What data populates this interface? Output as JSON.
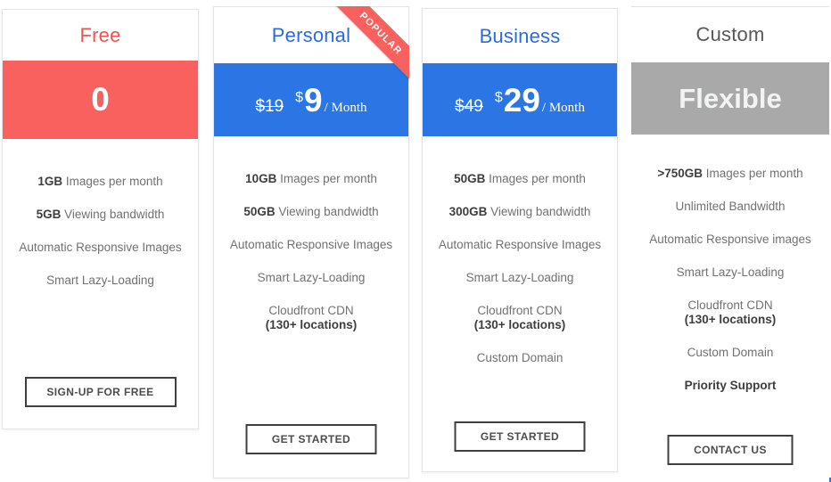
{
  "colors": {
    "red_band": "#f8615e",
    "blue_band": "#2b76e4",
    "gray_band": "#a9a9a9",
    "title_red": "#f4524f",
    "title_blue": "#2a6be2",
    "title_gray": "#58585a"
  },
  "bottom_strip_color": "#2b76e4",
  "plans": [
    {
      "key": "free",
      "title": "Free",
      "title_color": "#f4524f",
      "band_color": "#f8615e",
      "band": {
        "type": "text",
        "text": "0"
      },
      "features": [
        {
          "strong": "1GB",
          "text": "Images per month"
        },
        {
          "strong": "5GB",
          "text": "Viewing bandwidth"
        },
        {
          "text": "Automatic Responsive Images"
        },
        {
          "text": "Smart Lazy-Loading"
        }
      ],
      "cta": "SIGN-UP FOR FREE"
    },
    {
      "key": "personal",
      "title": "Personal",
      "title_color": "#2a6be2",
      "band_color": "#2b76e4",
      "ribbon": "POPULAR",
      "ribbon_color": "#f8615e",
      "band": {
        "type": "price",
        "old": "$19",
        "currency": "$",
        "amount": "9",
        "period": "/ Month"
      },
      "features": [
        {
          "strong": "10GB",
          "text": "Images per month"
        },
        {
          "strong": "50GB",
          "text": "Viewing bandwidth"
        },
        {
          "text": "Automatic Responsive Images"
        },
        {
          "text": "Smart Lazy-Loading"
        },
        {
          "text": "Cloudfront CDN",
          "bold_line2": "(130+ locations)"
        }
      ],
      "cta": "GET STARTED"
    },
    {
      "key": "business",
      "title": "Business",
      "title_color": "#2a6be2",
      "band_color": "#2b76e4",
      "band": {
        "type": "price",
        "old": "$49",
        "currency": "$",
        "amount": "29",
        "period": "/ Month"
      },
      "features": [
        {
          "strong": "50GB",
          "text": "Images per month"
        },
        {
          "strong": "300GB",
          "text": "Viewing bandwidth"
        },
        {
          "text": "Automatic Responsive Images"
        },
        {
          "text": "Smart Lazy-Loading"
        },
        {
          "text": "Cloudfront CDN",
          "bold_line2": "(130+ locations)"
        },
        {
          "text": "Custom Domain"
        }
      ],
      "cta": "GET STARTED"
    },
    {
      "key": "custom",
      "title": "Custom",
      "title_color": "#58585a",
      "band_color": "#a9a9a9",
      "band": {
        "type": "text",
        "text": "Flexible"
      },
      "features": [
        {
          "strong": ">750GB",
          "text": "Images per month"
        },
        {
          "text": "Unlimited Bandwidth"
        },
        {
          "text": "Automatic Responsive images"
        },
        {
          "text": "Smart Lazy-Loading"
        },
        {
          "text": "Cloudfront CDN",
          "bold_line2": "(130+ locations)"
        },
        {
          "text": "Custom Domain"
        },
        {
          "text": "Priority Support",
          "bold": true
        }
      ],
      "cta": "CONTACT US"
    }
  ]
}
